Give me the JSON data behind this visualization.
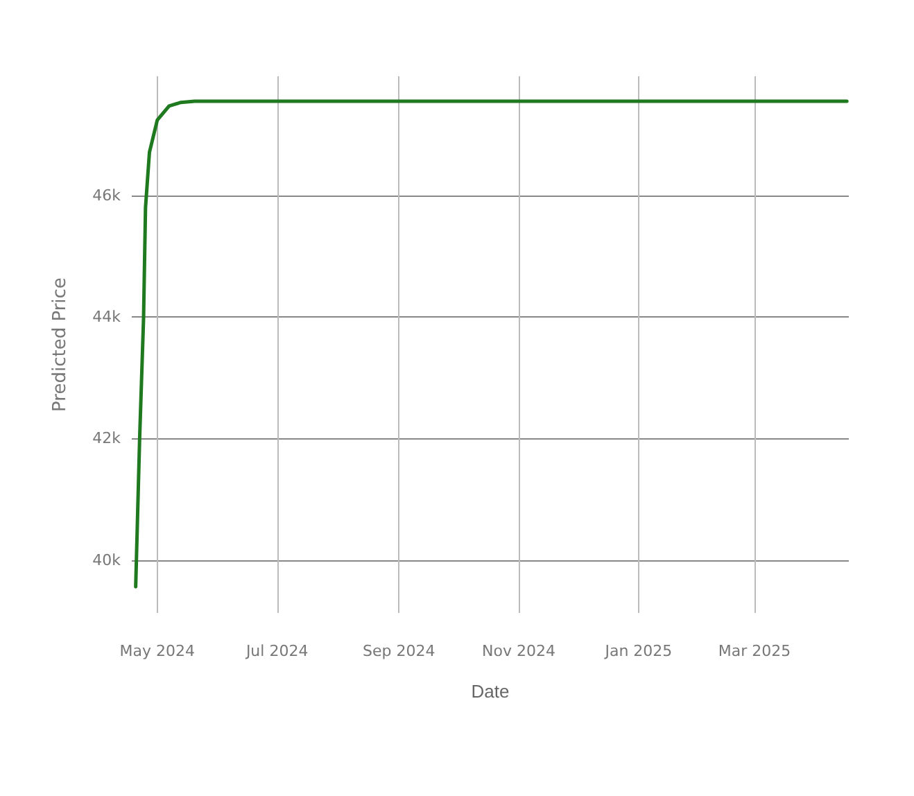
{
  "chart_data": {
    "type": "line",
    "xlabel": "Date",
    "ylabel": "Predicted Price",
    "x": [
      "2024-04-20",
      "2024-04-22",
      "2024-04-24",
      "2024-04-25",
      "2024-04-27",
      "2024-05-01",
      "2024-05-07",
      "2024-05-13",
      "2024-05-20",
      "2024-06-15",
      "2024-08-01",
      "2024-10-01",
      "2024-12-01",
      "2025-02-01",
      "2025-04-17"
    ],
    "series": [
      {
        "color": "#1f7a1f",
        "values": [
          39560,
          41990,
          43970,
          45800,
          46710,
          47240,
          47470,
          47530,
          47550,
          47550,
          47550,
          47550,
          47550,
          47550,
          47550
        ]
      }
    ],
    "xlim": [
      "2024-04-18",
      "2025-04-18"
    ],
    "xticks": [
      {
        "value": "2024-05-01",
        "label": "May 2024"
      },
      {
        "value": "2024-07-01",
        "label": "Jul 2024"
      },
      {
        "value": "2024-09-01",
        "label": "Sep 2024"
      },
      {
        "value": "2024-11-01",
        "label": "Nov 2024"
      },
      {
        "value": "2025-01-01",
        "label": "Jan 2025"
      },
      {
        "value": "2025-03-01",
        "label": "Mar 2025"
      }
    ],
    "ylim": [
      39130,
      47960
    ],
    "yticks": [
      {
        "value": 40000,
        "label": "40k"
      },
      {
        "value": 42000,
        "label": "42k"
      },
      {
        "value": 44000,
        "label": "44k"
      },
      {
        "value": 46000,
        "label": "46k"
      }
    ],
    "grid": true,
    "marker": "none",
    "line_style": "solid"
  }
}
